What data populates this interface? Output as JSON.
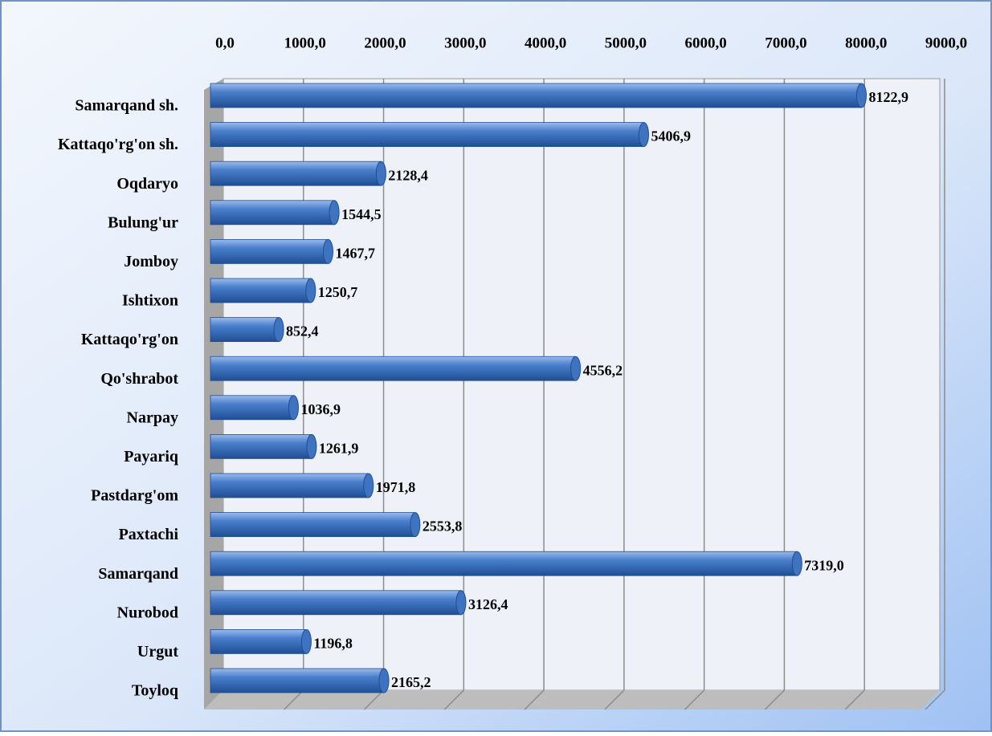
{
  "chart_data": {
    "type": "bar",
    "orientation": "horizontal",
    "categories": [
      "Samarqand sh.",
      "Kattaqo'rg'on sh.",
      "Oqdaryo",
      "Bulung'ur",
      "Jomboy",
      "Ishtixon",
      "Kattaqo'rg'on",
      "Qo'shrabot",
      "Narpay",
      "Payariq",
      "Pastdarg'om",
      "Paxtachi",
      "Samarqand",
      "Nurobod",
      "Urgut",
      "Toyloq"
    ],
    "values": [
      8122.9,
      5406.9,
      2128.4,
      1544.5,
      1467.7,
      1250.7,
      852.4,
      4556.2,
      1036.9,
      1261.9,
      1971.8,
      2553.8,
      7319.0,
      3126.4,
      1196.8,
      2165.2
    ],
    "value_labels": [
      "8122,9",
      "5406,9",
      "2128,4",
      "1544,5",
      "1467,7",
      "1250,7",
      "852,4",
      "4556,2",
      "1036,9",
      "1261,9",
      "1971,8",
      "2553,8",
      "7319,0",
      "3126,4",
      "1196,8",
      "2165,2"
    ],
    "color": "#3f72bf",
    "xlim": [
      0,
      9000
    ],
    "xticks": [
      {
        "value": 0,
        "label": "0,0"
      },
      {
        "value": 1000,
        "label": "1000,0"
      },
      {
        "value": 2000,
        "label": "2000,0"
      },
      {
        "value": 3000,
        "label": "3000,0"
      },
      {
        "value": 4000,
        "label": "4000,0"
      },
      {
        "value": 5000,
        "label": "5000,0"
      },
      {
        "value": 6000,
        "label": "6000,0"
      },
      {
        "value": 7000,
        "label": "7000,0"
      },
      {
        "value": 8000,
        "label": "8000,0"
      },
      {
        "value": 9000,
        "label": "9000,0"
      }
    ],
    "grid": true
  }
}
